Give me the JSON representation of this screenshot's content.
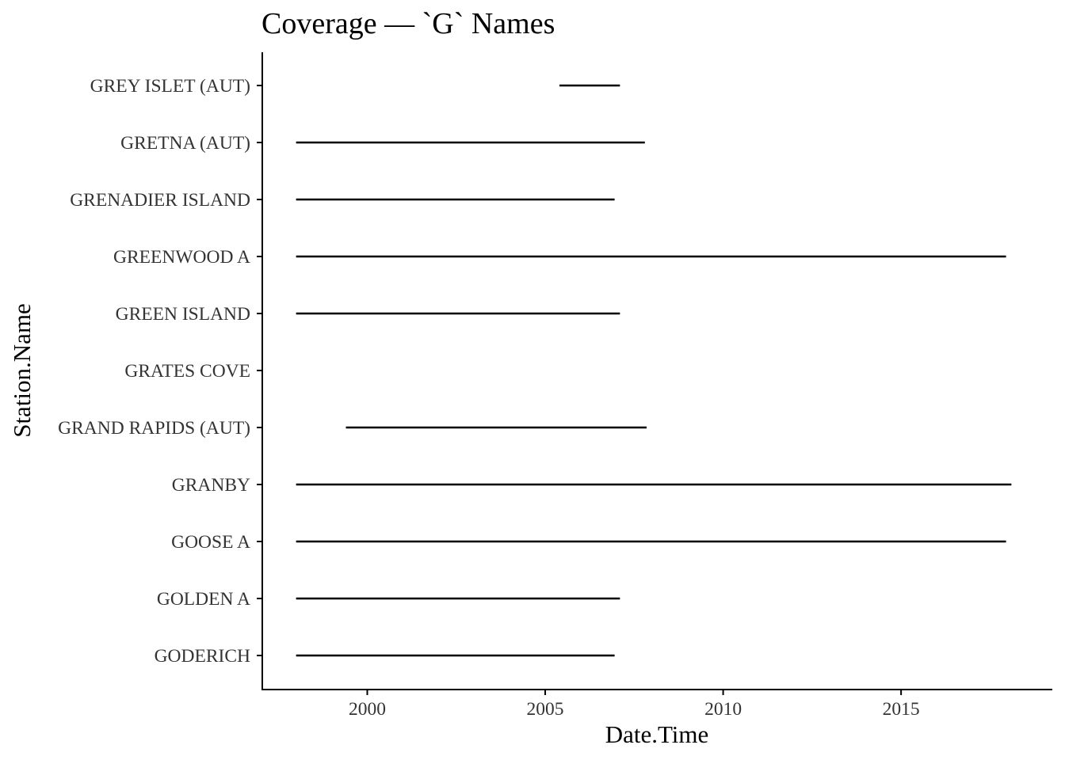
{
  "chart_data": {
    "type": "line",
    "title": "Coverage — `G` Names",
    "xlabel": "Date.Time",
    "ylabel": "Station.Name",
    "xlim": [
      1997.05,
      2019.25
    ],
    "x_ticks": [
      2000,
      2005,
      2010,
      2015
    ],
    "x_tick_labels": [
      "2000",
      "2005",
      "2010",
      "2015"
    ],
    "grid": false,
    "legend": "none",
    "categories": [
      "GODERICH",
      "GOLDEN A",
      "GOOSE A",
      "GRANBY",
      "GRAND RAPIDS (AUT)",
      "GRATES COVE",
      "GREEN ISLAND",
      "GREENWOOD A",
      "GRENADIER ISLAND",
      "GRETNA (AUT)",
      "GREY ISLET (AUT)"
    ],
    "series": [
      {
        "station": "GODERICH",
        "start": 1998.0,
        "end": 2006.95
      },
      {
        "station": "GOLDEN A",
        "start": 1998.0,
        "end": 2007.1
      },
      {
        "station": "GOOSE A",
        "start": 1998.0,
        "end": 2017.95
      },
      {
        "station": "GRANBY",
        "start": 1998.0,
        "end": 2018.1
      },
      {
        "station": "GRAND RAPIDS (AUT)",
        "start": 1999.4,
        "end": 2007.85
      },
      {
        "station": "GRATES COVE",
        "start": null,
        "end": null
      },
      {
        "station": "GREEN ISLAND",
        "start": 1998.0,
        "end": 2007.1
      },
      {
        "station": "GREENWOOD A",
        "start": 1998.0,
        "end": 2017.95
      },
      {
        "station": "GRENADIER ISLAND",
        "start": 1998.0,
        "end": 2006.95
      },
      {
        "station": "GRETNA (AUT)",
        "start": 1998.0,
        "end": 2007.8
      },
      {
        "station": "GREY ISLET (AUT)",
        "start": 2005.4,
        "end": 2007.1
      }
    ],
    "colors": {
      "segment": "#000000",
      "tick_label": "#333333",
      "axis": "#000000"
    }
  }
}
